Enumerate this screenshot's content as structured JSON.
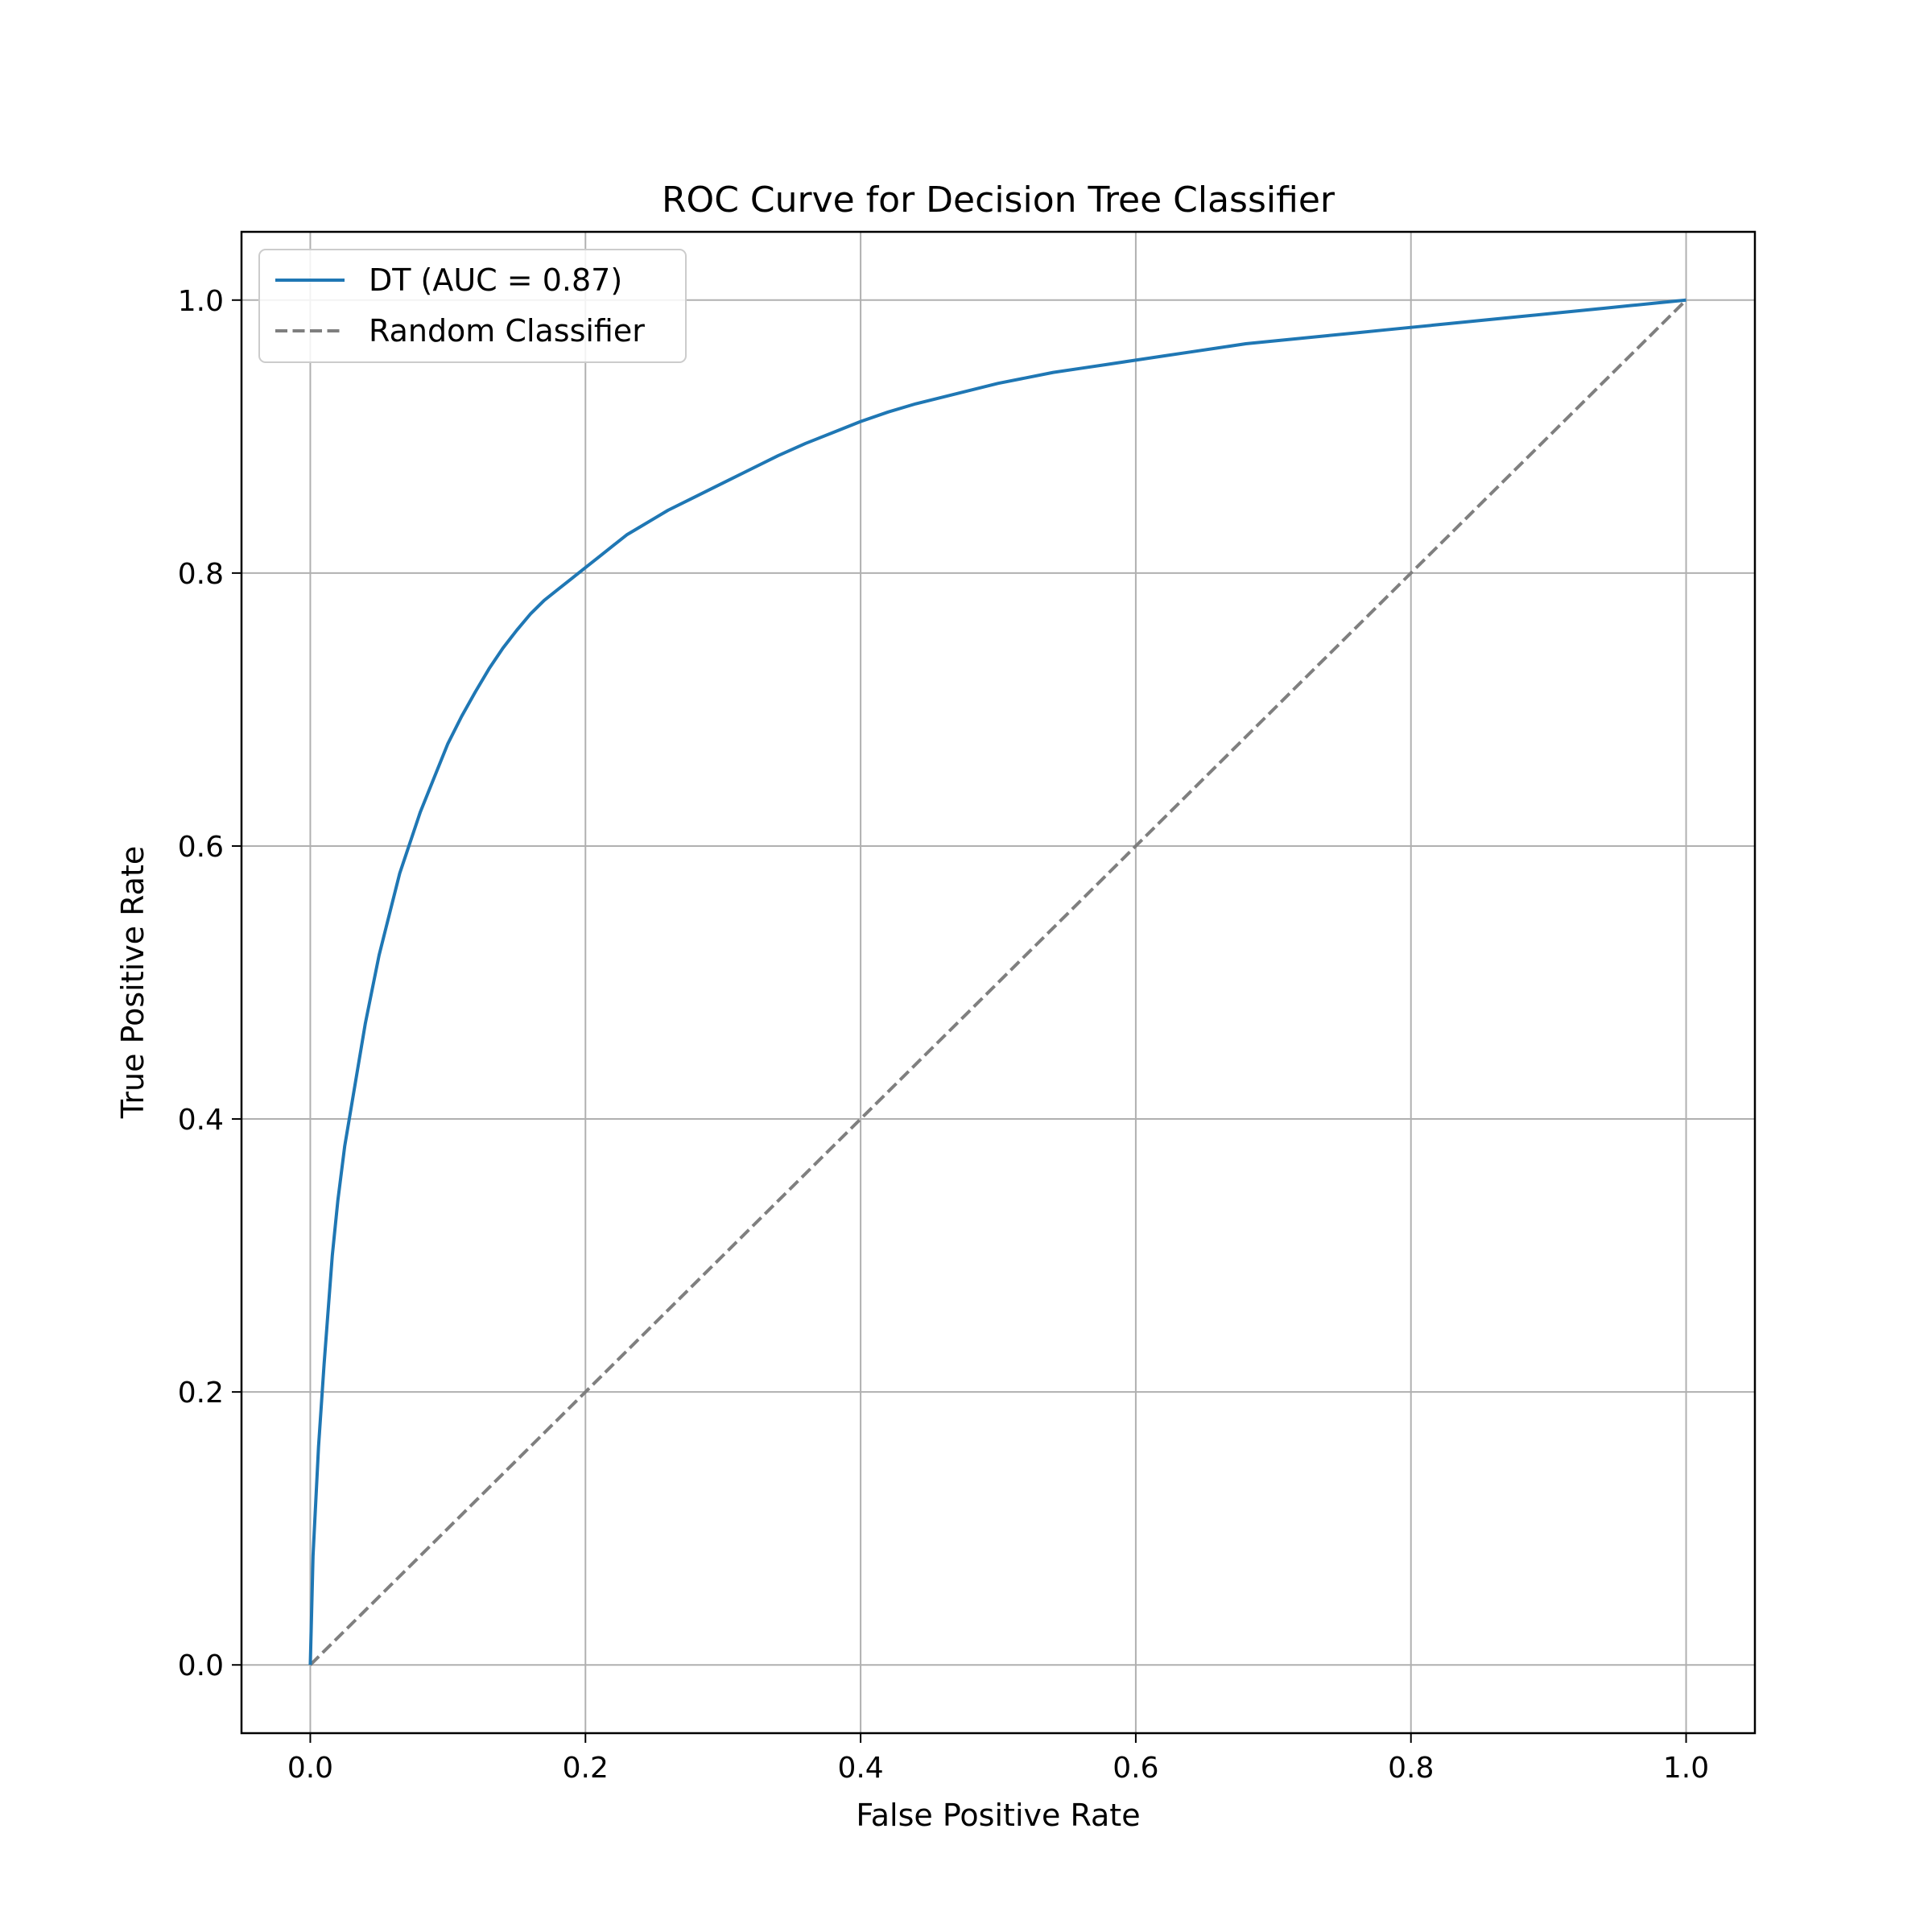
{
  "chart_data": {
    "type": "line",
    "title": "ROC Curve for Decision Tree Classifier",
    "xlabel": "False Positive Rate",
    "ylabel": "True Positive Rate",
    "xlim": [
      -0.05,
      1.05
    ],
    "ylim": [
      -0.05,
      1.05
    ],
    "xticks": [
      0.0,
      0.2,
      0.4,
      0.6,
      0.8,
      1.0
    ],
    "yticks": [
      0.0,
      0.2,
      0.4,
      0.6,
      0.8,
      1.0
    ],
    "xtick_labels": [
      "0.0",
      "0.2",
      "0.4",
      "0.6",
      "0.8",
      "1.0"
    ],
    "ytick_labels": [
      "0.0",
      "0.2",
      "0.4",
      "0.6",
      "0.8",
      "1.0"
    ],
    "grid": true,
    "legend_position": "top-left",
    "series": [
      {
        "name": "DT (AUC = 0.87)",
        "color": "#1f77b4",
        "style": "solid",
        "x": [
          0.0,
          0.002,
          0.004,
          0.006,
          0.008,
          0.01,
          0.013,
          0.016,
          0.02,
          0.025,
          0.03,
          0.035,
          0.04,
          0.045,
          0.05,
          0.055,
          0.06,
          0.065,
          0.07,
          0.075,
          0.08,
          0.09,
          0.1,
          0.11,
          0.12,
          0.13,
          0.14,
          0.15,
          0.16,
          0.17,
          0.18,
          0.19,
          0.2,
          0.21,
          0.22,
          0.23,
          0.24,
          0.25,
          0.26,
          0.28,
          0.3,
          0.32,
          0.34,
          0.36,
          0.38,
          0.4,
          0.42,
          0.44,
          0.46,
          0.48,
          0.5,
          0.52,
          0.54,
          0.56,
          0.58,
          0.6,
          0.62,
          0.64,
          0.66,
          0.68,
          0.7,
          0.72,
          0.74,
          0.76,
          0.78,
          0.8,
          0.82,
          0.84,
          0.86,
          0.88,
          0.9,
          0.92,
          0.94,
          0.96,
          0.98,
          1.0
        ],
        "y": [
          0.0,
          0.08,
          0.12,
          0.16,
          0.19,
          0.22,
          0.26,
          0.3,
          0.34,
          0.38,
          0.41,
          0.44,
          0.47,
          0.495,
          0.52,
          0.54,
          0.56,
          0.58,
          0.595,
          0.61,
          0.625,
          0.65,
          0.675,
          0.695,
          0.713,
          0.73,
          0.745,
          0.758,
          0.77,
          0.78,
          0.788,
          0.796,
          0.804,
          0.812,
          0.82,
          0.828,
          0.834,
          0.84,
          0.846,
          0.856,
          0.866,
          0.876,
          0.886,
          0.895,
          0.903,
          0.911,
          0.918,
          0.924,
          0.929,
          0.934,
          0.939,
          0.943,
          0.947,
          0.95,
          0.953,
          0.956,
          0.959,
          0.962,
          0.965,
          0.968,
          0.97,
          0.972,
          0.974,
          0.976,
          0.978,
          0.98,
          0.982,
          0.984,
          0.986,
          0.988,
          0.99,
          0.992,
          0.994,
          0.996,
          0.998,
          1.0
        ]
      },
      {
        "name": "Random Classifier",
        "color": "#7f7f7f",
        "style": "dashed",
        "x": [
          0.0,
          1.0
        ],
        "y": [
          0.0,
          1.0
        ]
      }
    ]
  }
}
